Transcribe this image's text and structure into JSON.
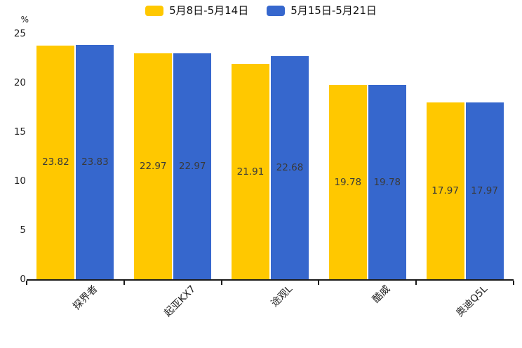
{
  "chart_data": {
    "type": "bar",
    "title": "",
    "unit_label": "%",
    "categories": [
      "探界者",
      "起亚KX7",
      "途观L",
      "酷威",
      "奥迪Q5L"
    ],
    "series": [
      {
        "name": "5月8日-5月14日",
        "color": "#FFC800",
        "values": [
          23.82,
          22.97,
          21.91,
          19.78,
          17.97
        ]
      },
      {
        "name": "5月15日-5月21日",
        "color": "#3667CD",
        "values": [
          23.83,
          22.97,
          22.68,
          19.78,
          17.97
        ]
      }
    ],
    "ylim": [
      0,
      25
    ],
    "yticks": [
      0,
      5,
      10,
      15,
      20,
      25
    ],
    "xlabel": "",
    "ylabel": "%",
    "grid": false,
    "legend_position": "top-center",
    "value_labels": "inside-middle",
    "bar_label_format": "0.00"
  },
  "colors": {
    "background": "#ffffff",
    "axis": "#1a1a1a",
    "tick_text": "#222222",
    "value_label_text": "#3a3a3a",
    "series_yellow": "#FFC800",
    "series_blue": "#3667CD"
  }
}
